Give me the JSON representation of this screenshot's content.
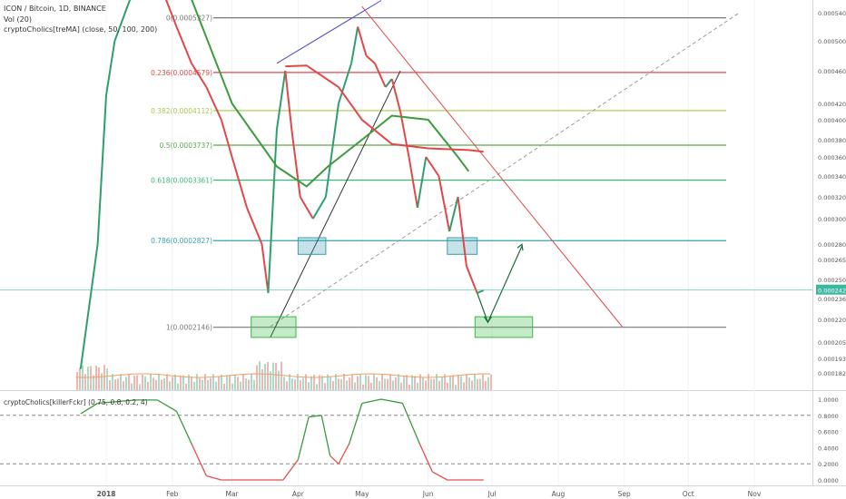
{
  "header": {
    "symbol_line": "ICON / Bitcoin, 1D, BINANCE",
    "volume_line": "Vol (20)",
    "ma_line": "cryptoCholics[treMA] (close, 50, 100, 200)"
  },
  "oscillator": {
    "label": "cryptoCholics[killerFckr] (0.75, 0.8, 0.2, 4)",
    "axis_ticks": [
      "1.0000",
      "0.8000",
      "0.6000",
      "0.4000",
      "0.2000",
      "0.0000"
    ],
    "dashed_levels": [
      0.8,
      0.2
    ],
    "colors": {
      "high": "#3d9a3d",
      "low": "#e05050"
    }
  },
  "x_axis": {
    "labels": [
      "2018",
      "Feb",
      "Mar",
      "Apr",
      "May",
      "Jun",
      "Jul",
      "Aug",
      "Sep",
      "Oct",
      "Nov"
    ]
  },
  "price_axis": {
    "labels": [
      "0.0005400",
      "0.0005000",
      "0.0004600",
      "0.0004200",
      "0.0004000",
      "0.0003800",
      "0.0003600",
      "0.0003400",
      "0.0003200",
      "0.0003000",
      "0.0002800",
      "0.0002650",
      "0.0002500",
      "0.0002422",
      "0.0002360",
      "0.0002200",
      "0.0002050",
      "0.0001930",
      "0.0001820"
    ],
    "current_price": "0.0002422"
  },
  "fibonacci": [
    {
      "label": "0(0.0005327)",
      "value": 0.0005327,
      "color": "#787878"
    },
    {
      "label": "0.236(0.0004579)",
      "value": 0.0004579,
      "color": "#e04848"
    },
    {
      "label": "0.382(0.0004112)",
      "value": 0.0004112,
      "color": "#a8c84a"
    },
    {
      "label": "0.5(0.0003737)",
      "value": 0.0003737,
      "color": "#5aaa4a"
    },
    {
      "label": "0.618(0.0003361)",
      "value": 0.0003361,
      "color": "#3ab87a"
    },
    {
      "label": "0.786(0.0002827)",
      "value": 0.0002827,
      "color": "#3a9fb0"
    },
    {
      "label": "1(0.0002146)",
      "value": 0.0002146,
      "color": "#787878"
    }
  ],
  "chart_data": {
    "type": "line",
    "title": "ICON / Bitcoin, 1D, BINANCE",
    "x_axis_labels": [
      "2018",
      "Feb",
      "Mar",
      "Apr",
      "May",
      "Jun",
      "Jul",
      "Aug",
      "Sep",
      "Oct",
      "Nov"
    ],
    "series": [
      {
        "name": "close",
        "points": [
          [
            "2017-12-20",
            0.000185
          ],
          [
            "2017-12-28",
            0.00028
          ],
          [
            "2018-01-01",
            0.00043
          ],
          [
            "2018-01-05",
            0.0005
          ],
          [
            "2018-01-12",
            0.00056
          ],
          [
            "2018-01-20",
            0.0006
          ],
          [
            "2018-01-27",
            0.00058
          ],
          [
            "2018-02-03",
            0.00052
          ],
          [
            "2018-02-10",
            0.00047
          ],
          [
            "2018-02-17",
            0.00044
          ],
          [
            "2018-02-24",
            0.0004
          ],
          [
            "2018-03-01",
            0.00036
          ],
          [
            "2018-03-08",
            0.00031
          ],
          [
            "2018-03-15",
            0.00028
          ],
          [
            "2018-03-18",
            0.00024
          ],
          [
            "2018-03-22",
            0.00039
          ],
          [
            "2018-03-26",
            0.00046
          ],
          [
            "2018-03-29",
            0.00039
          ],
          [
            "2018-04-02",
            0.00032
          ],
          [
            "2018-04-08",
            0.0003
          ],
          [
            "2018-04-14",
            0.00032
          ],
          [
            "2018-04-20",
            0.00042
          ],
          [
            "2018-04-26",
            0.00047
          ],
          [
            "2018-04-29",
            0.00052
          ],
          [
            "2018-05-03",
            0.00048
          ],
          [
            "2018-05-07",
            0.00047
          ],
          [
            "2018-05-12",
            0.00044
          ],
          [
            "2018-05-15",
            0.00045
          ],
          [
            "2018-05-19",
            0.00041
          ],
          [
            "2018-05-23",
            0.00036
          ],
          [
            "2018-05-27",
            0.00031
          ],
          [
            "2018-05-31",
            0.00036
          ],
          [
            "2018-06-06",
            0.00034
          ],
          [
            "2018-06-11",
            0.00029
          ],
          [
            "2018-06-15",
            0.00032
          ],
          [
            "2018-06-19",
            0.00026
          ],
          [
            "2018-06-24",
            0.00024
          ],
          [
            "2018-06-27",
            0.000242
          ]
        ]
      },
      {
        "name": "treMA 50",
        "color": "#3d9a3d",
        "points": [
          [
            "2018-02-08",
            0.00058
          ],
          [
            "2018-03-01",
            0.00042
          ],
          [
            "2018-03-22",
            0.00035
          ],
          [
            "2018-04-05",
            0.00033
          ],
          [
            "2018-04-15",
            0.00035
          ],
          [
            "2018-05-01",
            0.00038
          ],
          [
            "2018-05-15",
            0.000405
          ],
          [
            "2018-06-01",
            0.0004
          ],
          [
            "2018-06-15",
            0.00036
          ],
          [
            "2018-06-20",
            0.000345
          ]
        ]
      },
      {
        "name": "treMA 100",
        "color": "#e04848",
        "points": [
          [
            "2018-03-26",
            0.000466
          ],
          [
            "2018-04-05",
            0.000467
          ],
          [
            "2018-04-20",
            0.00044
          ],
          [
            "2018-05-01",
            0.0004
          ],
          [
            "2018-05-15",
            0.000375
          ],
          [
            "2018-06-01",
            0.00037
          ],
          [
            "2018-06-20",
            0.000368
          ],
          [
            "2018-06-27",
            0.000366
          ]
        ]
      }
    ],
    "oscillator": [
      [
        "2017-12-20",
        0.82
      ],
      [
        "2017-12-28",
        0.95
      ],
      [
        "2018-01-15",
        0.99
      ],
      [
        "2018-01-25",
        0.99
      ],
      [
        "2018-02-03",
        0.85
      ],
      [
        "2018-02-10",
        0.45
      ],
      [
        "2018-02-17",
        0.05
      ],
      [
        "2018-02-24",
        0.0
      ],
      [
        "2018-03-25",
        0.0
      ],
      [
        "2018-04-01",
        0.25
      ],
      [
        "2018-04-06",
        0.78
      ],
      [
        "2018-04-12",
        0.8
      ],
      [
        "2018-04-16",
        0.3
      ],
      [
        "2018-04-20",
        0.2
      ],
      [
        "2018-04-25",
        0.45
      ],
      [
        "2018-05-01",
        0.95
      ],
      [
        "2018-05-10",
        1.0
      ],
      [
        "2018-05-20",
        0.95
      ],
      [
        "2018-05-28",
        0.45
      ],
      [
        "2018-06-03",
        0.1
      ],
      [
        "2018-06-10",
        0.0
      ],
      [
        "2018-06-27",
        0.0
      ]
    ],
    "annotations": {
      "resistance_line": [
        [
          "2018-05-01",
          0.00055
        ],
        [
          "2018-08-31",
          0.000215
        ]
      ],
      "support_line": [
        [
          "2018-03-19",
          0.000208
        ],
        [
          "2018-05-19",
          0.00046
        ]
      ],
      "upper_line": [
        [
          "2018-03-22",
          0.00047
        ],
        [
          "2018-05-10",
          0.00056
        ]
      ],
      "dashed_trend": [
        [
          "2018-03-19",
          0.000215
        ],
        [
          "2018-10-25",
          0.00054
        ]
      ],
      "boxes": [
        {
          "from": "2018-04-01",
          "to": "2018-04-14",
          "low": 0.00027,
          "high": 0.000285,
          "color": "#3a9fb0"
        },
        {
          "from": "2018-06-10",
          "to": "2018-06-24",
          "low": 0.00027,
          "high": 0.000285,
          "color": "#3a9fb0"
        },
        {
          "from": "2018-03-10",
          "to": "2018-03-31",
          "low": 0.000208,
          "high": 0.000222,
          "color": "#3ab84a"
        },
        {
          "from": "2018-06-23",
          "to": "2018-07-20",
          "low": 0.000208,
          "high": 0.000222,
          "color": "#3ab84a"
        }
      ],
      "projection_arrow": [
        [
          "2018-06-24",
          0.00024
        ],
        [
          "2018-06-29",
          0.000218
        ],
        [
          "2018-07-15",
          0.000278
        ]
      ]
    }
  }
}
